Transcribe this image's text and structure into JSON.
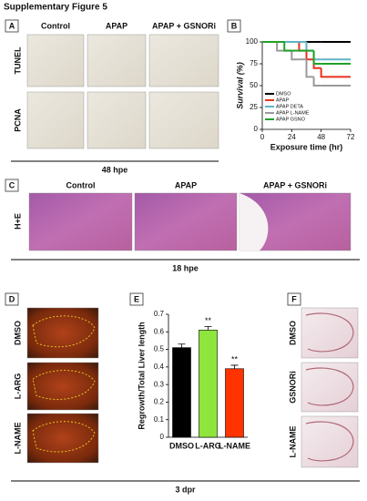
{
  "title": "Supplementary Figure 5",
  "panel_a": {
    "label": "A",
    "columns": [
      "Control",
      "APAP",
      "APAP + GSNORi"
    ],
    "rows": [
      "TUNEL",
      "PCNA"
    ],
    "footer": "48 hpe"
  },
  "panel_c": {
    "label": "C",
    "columns": [
      "Control",
      "APAP",
      "APAP + GSNORi"
    ],
    "rows": [
      "H+E"
    ],
    "footer": "18 hpe"
  },
  "panel_d": {
    "label": "D",
    "rows": [
      "DMSO",
      "L-ARG",
      "L-NAME"
    ]
  },
  "panel_f": {
    "label": "F",
    "rows": [
      "DMSO",
      "GSNORi",
      "L-NAME"
    ]
  },
  "footer_bottom": "3 dpr",
  "chart_data": [
    {
      "panel": "B",
      "type": "line",
      "step": true,
      "ylabel": "Survival (%)",
      "xlabel": "Exposure time (hr)",
      "x": [
        0,
        12,
        18,
        24,
        30,
        36,
        42,
        48,
        72
      ],
      "series": [
        {
          "name": "DMSO",
          "color": "#000000",
          "values": [
            100,
            100,
            100,
            100,
            100,
            100,
            100,
            100,
            100
          ]
        },
        {
          "name": "APAP",
          "color": "#e8321e",
          "values": [
            100,
            100,
            100,
            100,
            90,
            80,
            70,
            60,
            60
          ]
        },
        {
          "name": "APAP DETA",
          "color": "#5fb3c6",
          "values": [
            100,
            100,
            100,
            100,
            100,
            90,
            80,
            80,
            80
          ]
        },
        {
          "name": "APAP L-NAME",
          "color": "#9a9a9a",
          "values": [
            100,
            90,
            90,
            80,
            80,
            60,
            50,
            50,
            50
          ]
        },
        {
          "name": "APAP GSNO",
          "color": "#22a12a",
          "values": [
            100,
            100,
            90,
            90,
            90,
            90,
            75,
            75,
            75
          ]
        }
      ],
      "xlim": [
        0,
        72
      ],
      "xticks": [
        0,
        24,
        48,
        72
      ],
      "ylim": [
        0,
        100
      ],
      "yticks": [
        0,
        25,
        50,
        75,
        100
      ],
      "legend": "lower-left"
    },
    {
      "panel": "E",
      "type": "bar",
      "ylabel": "Regrowth/Total Liver length",
      "categories": [
        "DMSO",
        "L-ARG",
        "L-NAME"
      ],
      "values": [
        0.51,
        0.61,
        0.39
      ],
      "errors": [
        0.02,
        0.02,
        0.02
      ],
      "colors": [
        "#000000",
        "#8ee63c",
        "#ff3300"
      ],
      "significance": [
        null,
        "**",
        "**"
      ],
      "ylim": [
        0,
        0.7
      ],
      "yticks": [
        0,
        0.1,
        0.2,
        0.3,
        0.4,
        0.5,
        0.6,
        0.7
      ]
    }
  ]
}
